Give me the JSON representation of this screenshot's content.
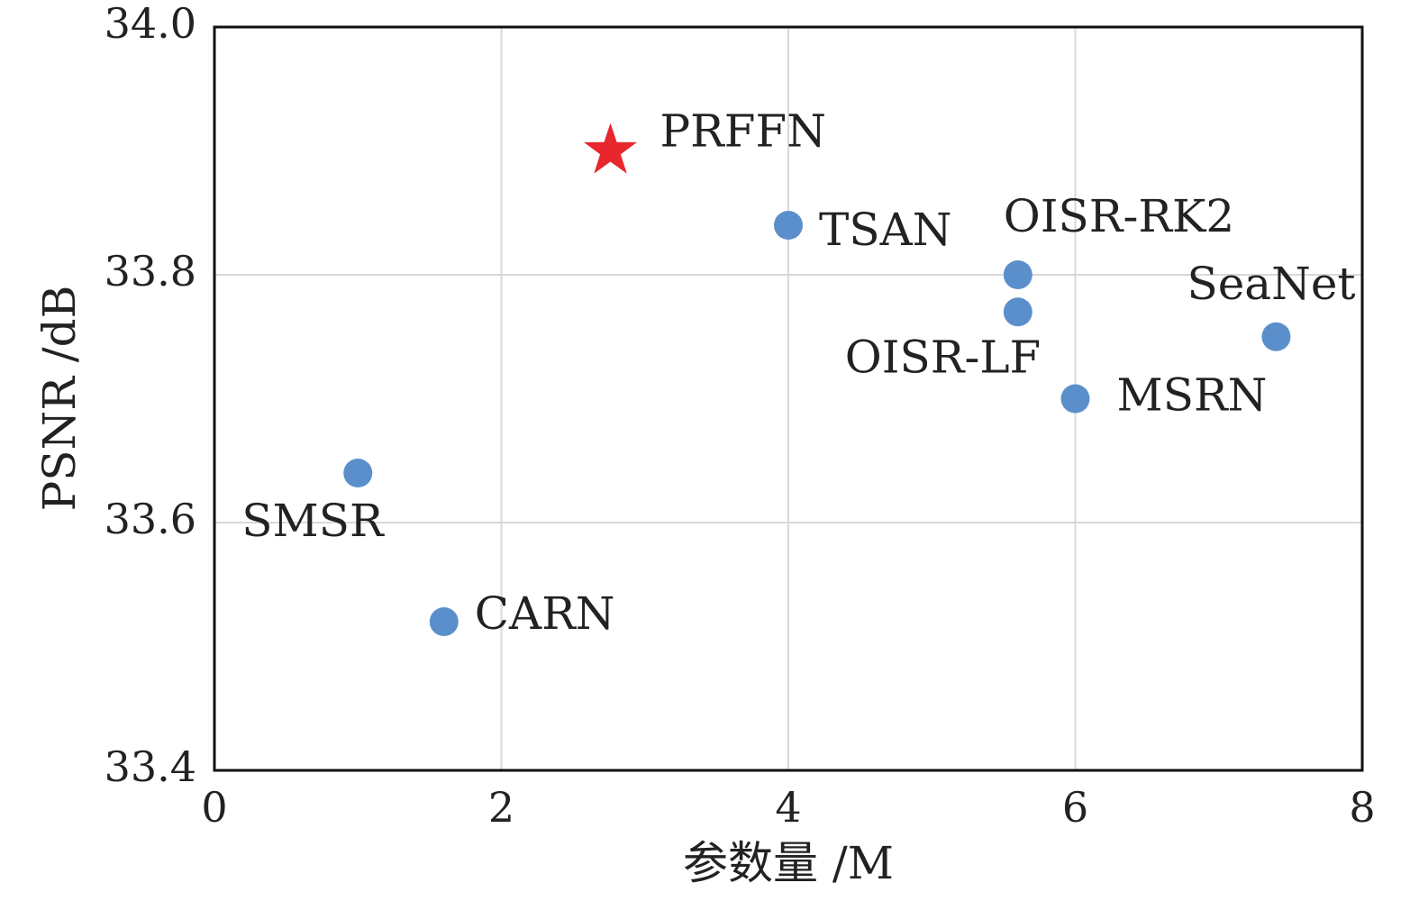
{
  "chart_data": {
    "type": "scatter",
    "x_label": "参数量 /M",
    "y_label": "PSNR /dB",
    "xlim": [
      0,
      8
    ],
    "xticks": [
      0,
      2,
      4,
      6,
      8
    ],
    "ylim": [
      33.4,
      34.0
    ],
    "yticks": [
      33.4,
      33.6,
      33.8,
      {
        "value": 34,
        "label": "34.0"
      }
    ],
    "grid": true,
    "series": [
      {
        "name": "PRFFN",
        "color": "#e8262d",
        "marker": "star",
        "x": [
          2.76
        ],
        "values": [
          33.9
        ]
      },
      {
        "name": "TSAN",
        "color": "#5b8fcc",
        "marker": "circle",
        "x": [
          4.0
        ],
        "values": [
          33.84
        ]
      },
      {
        "name": "OISR-RK2",
        "color": "#5b8fcc",
        "marker": "circle",
        "x": [
          5.6
        ],
        "values": [
          33.8
        ]
      },
      {
        "name": "OISR-LF",
        "color": "#5b8fcc",
        "marker": "circle",
        "x": [
          5.6
        ],
        "values": [
          33.77
        ]
      },
      {
        "name": "SeaNet",
        "color": "#5b8fcc",
        "marker": "circle",
        "x": [
          7.4
        ],
        "values": [
          33.75
        ]
      },
      {
        "name": "MSRN",
        "color": "#5b8fcc",
        "marker": "circle",
        "x": [
          6.0
        ],
        "values": [
          33.7
        ]
      },
      {
        "name": "SMSR",
        "color": "#5b8fcc",
        "marker": "circle",
        "x": [
          1.0
        ],
        "values": [
          33.64
        ]
      },
      {
        "name": "CARN",
        "color": "#5b8fcc",
        "marker": "circle",
        "x": [
          1.6
        ],
        "values": [
          33.52
        ]
      }
    ]
  }
}
